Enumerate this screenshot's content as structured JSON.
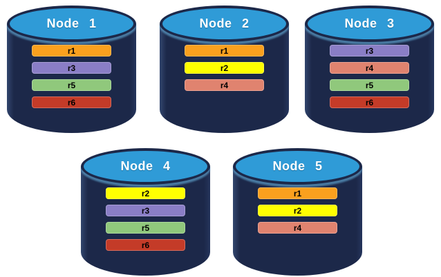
{
  "diagram": {
    "description": "Five database node cylinders showing replicated ranges",
    "nodes": [
      {
        "label": "Node 1",
        "ranges": [
          "r1",
          "r3",
          "r5",
          "r6"
        ]
      },
      {
        "label": "Node 2",
        "ranges": [
          "r1",
          "r2",
          "r4"
        ]
      },
      {
        "label": "Node 3",
        "ranges": [
          "r3",
          "r4",
          "r5",
          "r6"
        ]
      },
      {
        "label": "Node 4",
        "ranges": [
          "r2",
          "r3",
          "r5",
          "r6"
        ]
      },
      {
        "label": "Node 5",
        "ranges": [
          "r1",
          "r2",
          "r4"
        ]
      }
    ]
  },
  "colors": {
    "page_background": "#FFFFFF",
    "cylinder_body": "#1C2849",
    "cylinder_top": "#2F9BD7",
    "node_title_text": "#FFFFFF",
    "bar_label_text": "#000000",
    "ranges": {
      "r1": "#FAA01E",
      "r2": "#FFFF00",
      "r3": "#8A7EC6",
      "r4": "#E0836F",
      "r5": "#90C87C",
      "r6": "#C43B28"
    }
  }
}
